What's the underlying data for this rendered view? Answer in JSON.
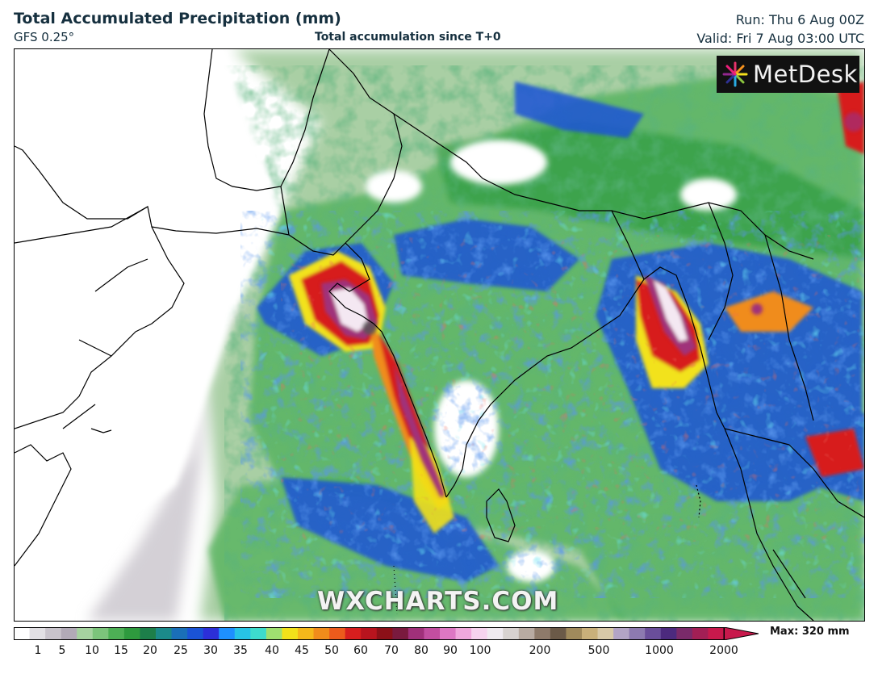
{
  "header": {
    "title": "Total Accumulated Precipitation (mm)",
    "model": "GFS 0.25°",
    "subtitle": "Total accumulation since T+0",
    "run": "Run: Thu 6 Aug 00Z",
    "valid": "Valid: Fri 7 Aug 03:00 UTC"
  },
  "branding": {
    "logo_text": "MetDesk",
    "logo_icon": "metdesk-burst-icon",
    "watermark": "WXCHARTS.COM"
  },
  "map": {
    "field": "precipitation accumulation",
    "colors": {
      "land_boundary": "#000000",
      "ocean_light": "#a9cfa4",
      "light_green": "#74c476",
      "green": "#2e9a3e",
      "blue": "#1a53d6",
      "cyan": "#27c4e6",
      "yellow": "#f2e21a",
      "orange": "#f08c1b",
      "red": "#d71e1e",
      "magenta": "#a0307a",
      "white_peak": "#f4e8f2",
      "grey_trace": "#c9c4cc"
    }
  },
  "legend": {
    "ticks": [
      "1",
      "5",
      "10",
      "15",
      "20",
      "25",
      "30",
      "35",
      "40",
      "45",
      "50",
      "60",
      "70",
      "80",
      "90",
      "100",
      "200",
      "500",
      "1000",
      "2000"
    ],
    "max_label": "Max: 320 mm",
    "bar_colors": [
      "#ffffff",
      "#e2e0e4",
      "#c9c4cc",
      "#b2aab7",
      "#a6d3a0",
      "#7cc47b",
      "#4daf55",
      "#2e9a3e",
      "#1d7f4a",
      "#1b8a8a",
      "#1a6fb8",
      "#1a53d6",
      "#2c2fd8",
      "#1e90ff",
      "#27c4e6",
      "#3ddccd",
      "#9fe070",
      "#f2e21a",
      "#f5b81a",
      "#f08c1b",
      "#ec5b1c",
      "#d71e1e",
      "#b8141e",
      "#8c1018",
      "#7a1a3e",
      "#a0307a",
      "#c24ea0",
      "#dd77c3",
      "#f0a8dc",
      "#f6d3ee",
      "#f0eaf0",
      "#d8d2d0",
      "#b9aba2",
      "#8e7a6a",
      "#6b5a48",
      "#a08a5c",
      "#c9b07a",
      "#d8c9a8",
      "#b3a4c6",
      "#8d7ab0",
      "#6a4e9a",
      "#4c2a7e",
      "#7a2a6a",
      "#a21f55",
      "#c8194c"
    ]
  }
}
